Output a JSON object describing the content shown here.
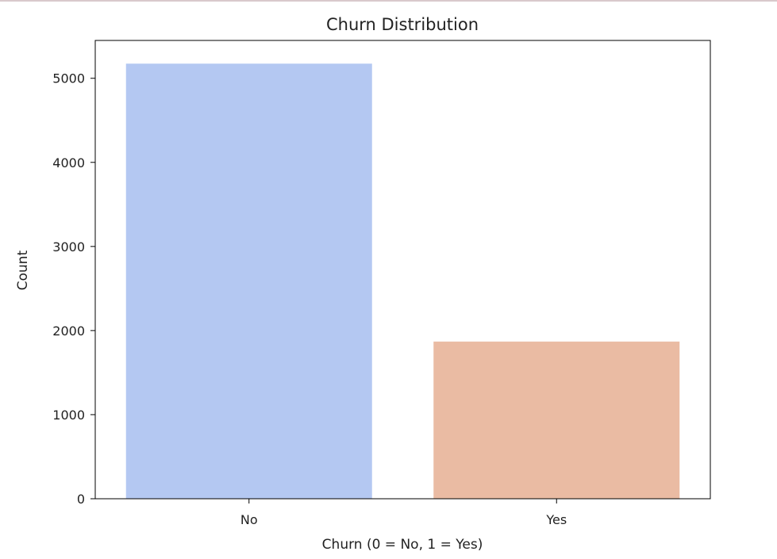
{
  "chart_data": {
    "type": "bar",
    "title": "Churn Distribution",
    "xlabel": "Churn (0 = No, 1 = Yes)",
    "ylabel": "Count",
    "categories": [
      "No",
      "Yes"
    ],
    "values": [
      5174,
      1869
    ],
    "colors": [
      "#b4c8f2",
      "#eabba3"
    ],
    "ylim": [
      0,
      5450
    ],
    "yticks": [
      0,
      1000,
      2000,
      3000,
      4000,
      5000
    ],
    "grid": false,
    "legend": "none"
  }
}
